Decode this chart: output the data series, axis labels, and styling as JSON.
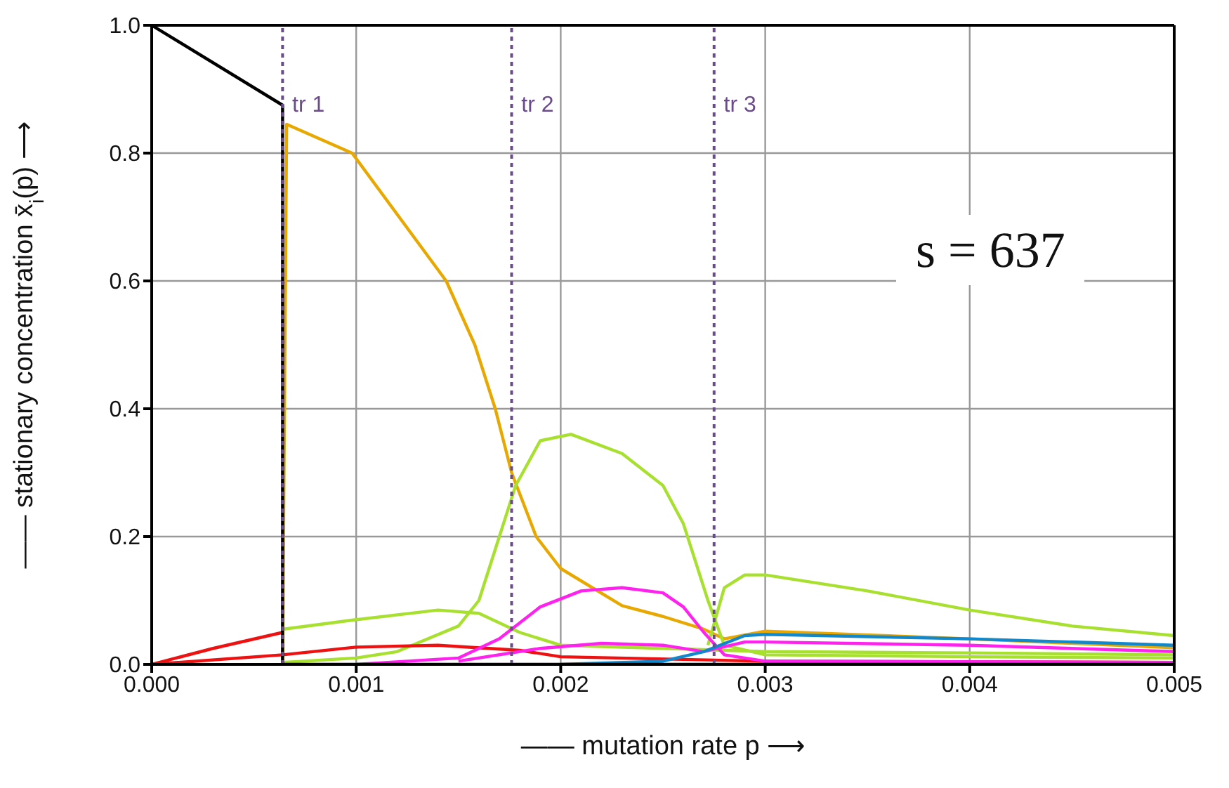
{
  "chart_data": {
    "type": "line",
    "xlabel": "—— mutation rate p ⟶",
    "ylabel": "—— stationary concentration x̄$_{i}$(p) ⟶",
    "annotations": [
      "s = 637"
    ],
    "xlim": [
      0,
      0.005
    ],
    "xticks": [
      {
        "value": 0,
        "label": "0.000"
      },
      {
        "value": 0.001,
        "label": "0.001"
      },
      {
        "value": 0.002,
        "label": "0.002"
      },
      {
        "value": 0.003,
        "label": "0.003"
      },
      {
        "value": 0.004,
        "label": "0.004"
      },
      {
        "value": 0.005,
        "label": "0.005"
      }
    ],
    "ylim": [
      0,
      1
    ],
    "yticks": [
      {
        "value": 0,
        "label": "0.0"
      },
      {
        "value": 0.2,
        "label": "0.2"
      },
      {
        "value": 0.4,
        "label": "0.4"
      },
      {
        "value": 0.6,
        "label": "0.6"
      },
      {
        "value": 0.8,
        "label": "0.8"
      },
      {
        "value": 1,
        "label": "1.0"
      }
    ],
    "grid": true,
    "marker": "none",
    "line_style": "solid",
    "ref_lines": [
      {
        "axis": "x",
        "value": 0.00064,
        "label": "tr 1",
        "color": "#6b4c8a",
        "line_style": "dotted"
      },
      {
        "axis": "x",
        "value": 0.00176,
        "label": "tr 2",
        "color": "#6b4c8a",
        "line_style": "dotted"
      },
      {
        "axis": "x",
        "value": 0.00275,
        "label": "tr 3",
        "color": "#6b4c8a",
        "line_style": "dotted"
      }
    ],
    "series": [
      {
        "color": "#e8a800",
        "x": [
          0.00064,
          0.00066,
          0.00098,
          0.00144,
          0.00158,
          0.00168,
          0.00176,
          0.00188,
          0.002,
          0.0023,
          0.0025,
          0.0027,
          0.0028,
          0.003,
          0.004,
          0.005
        ],
        "values": [
          0,
          0.845,
          0.8,
          0.6,
          0.5,
          0.4,
          0.3,
          0.2,
          0.15,
          0.092,
          0.075,
          0.055,
          0.04,
          0.052,
          0.04,
          0.026
        ]
      },
      {
        "color": "#a8e030",
        "x": [
          0.00064,
          0.001,
          0.0012,
          0.0015,
          0.0016,
          0.0017,
          0.00178,
          0.0019,
          0.00205,
          0.0023,
          0.0025,
          0.0026,
          0.00272,
          0.0028,
          0.003,
          0.004,
          0.005
        ],
        "values": [
          0.003,
          0.01,
          0.02,
          0.06,
          0.1,
          0.2,
          0.28,
          0.35,
          0.36,
          0.33,
          0.28,
          0.22,
          0.1,
          0.03,
          0.015,
          0.012,
          0.01
        ]
      },
      {
        "color": "#a8e030",
        "x": [
          0.00064,
          0.001,
          0.0014,
          0.0016,
          0.0018,
          0.002,
          0.0025,
          0.003,
          0.004,
          0.005
        ],
        "values": [
          0.055,
          0.07,
          0.085,
          0.08,
          0.05,
          0.03,
          0.025,
          0.02,
          0.018,
          0.015
        ]
      },
      {
        "color": "#a8e030",
        "x": [
          0.00272,
          0.0028,
          0.0029,
          0.003,
          0.0035,
          0.004,
          0.0045,
          0.005
        ],
        "values": [
          0.03,
          0.12,
          0.14,
          0.14,
          0.115,
          0.085,
          0.06,
          0.045
        ]
      },
      {
        "color": "#ee1111",
        "x": [
          0,
          0.0003,
          0.00064
        ],
        "values": [
          0,
          0.025,
          0.05
        ]
      },
      {
        "color": "#ee1111",
        "x": [
          0,
          0.00064,
          0.001,
          0.0014,
          0.0018,
          0.002,
          0.003,
          0.005
        ],
        "values": [
          0,
          0.015,
          0.027,
          0.03,
          0.022,
          0.012,
          0.005,
          0.003
        ]
      },
      {
        "color": "#ff22ee",
        "x": [
          0.001,
          0.0015,
          0.0017,
          0.0019,
          0.0021,
          0.0023,
          0.0025,
          0.0026,
          0.0027,
          0.0028,
          0.003,
          0.005
        ],
        "values": [
          0,
          0.01,
          0.04,
          0.09,
          0.115,
          0.12,
          0.112,
          0.09,
          0.05,
          0.015,
          0.005,
          0.003
        ]
      },
      {
        "color": "#ff22ee",
        "x": [
          0.0015,
          0.0019,
          0.0022,
          0.0025,
          0.0027,
          0.0029,
          0.003,
          0.004,
          0.005
        ],
        "values": [
          0.005,
          0.025,
          0.033,
          0.03,
          0.02,
          0.035,
          0.035,
          0.03,
          0.02
        ]
      },
      {
        "color": "#1188cc",
        "x": [
          0.002,
          0.0025,
          0.0027,
          0.0029,
          0.003,
          0.004,
          0.005
        ],
        "values": [
          0,
          0.005,
          0.02,
          0.045,
          0.047,
          0.04,
          0.03
        ]
      },
      {
        "color": "#000000",
        "x": [
          0,
          0.00064,
          0.00064,
          0.005
        ],
        "values": [
          1,
          0.875,
          0,
          0
        ]
      }
    ]
  }
}
